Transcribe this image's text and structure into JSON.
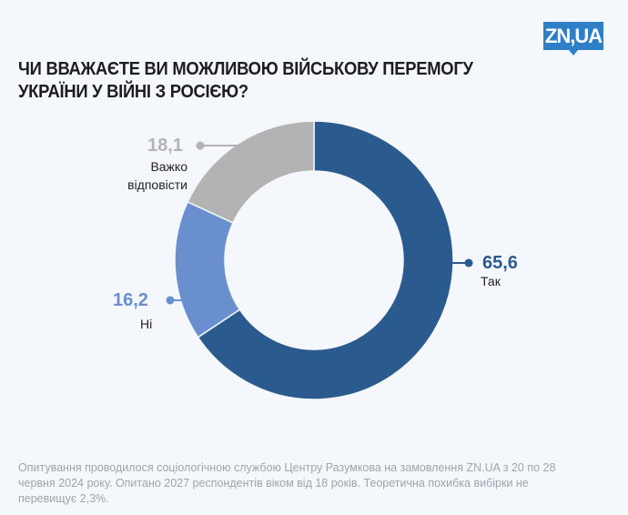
{
  "logo": "ZN,UA",
  "title": "ЧИ ВВАЖАЄТЕ ВИ МОЖЛИВОЮ ВІЙСЬКОВУ ПЕРЕМОГУ УКРАЇНИ У ВІЙНІ З РОСІЄЮ?",
  "footnote": "Опитування проводилося  соціологічною службою Центру Разумкова на замовлення ZN.UA з 20 по 28 червня 2024 року. Опитано 2027 респондентів віком від 18 років. Теоретична похибка вибірки не перевищує 2,3%.",
  "chart_data": {
    "type": "pie",
    "variant": "donut",
    "start": "top, clockwise",
    "slices": [
      {
        "label": "Так",
        "value": 65.6,
        "display": "65,6",
        "color": "#2b5a8f"
      },
      {
        "label": "Ні",
        "value": 16.2,
        "display": "16,2",
        "color": "#6a8fcf"
      },
      {
        "label": "Важко відповісти",
        "value": 18.1,
        "display": "18,1",
        "color": "#b3b3b3"
      }
    ]
  }
}
